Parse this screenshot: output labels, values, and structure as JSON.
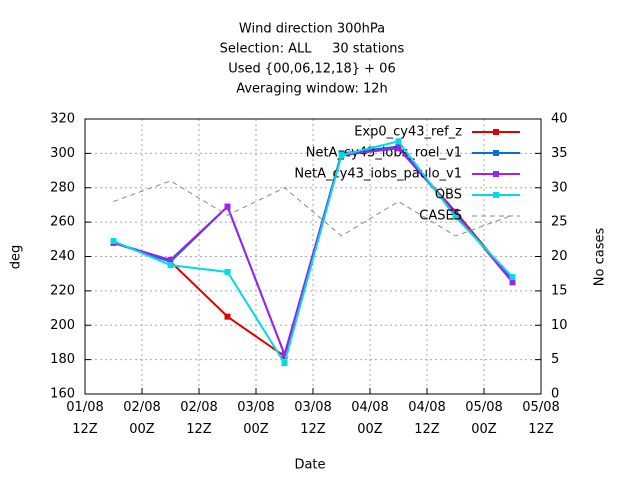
{
  "chart_data": {
    "type": "line",
    "title": [
      "Wind direction 300hPa",
      "Selection: ALL     30 stations",
      "Used {00,06,12,18} + 06",
      "Averaging window: 12h"
    ],
    "xlabel": "Date",
    "ylabel": "deg",
    "y2label": "No cases",
    "x": [
      6,
      18,
      30,
      42,
      54,
      66,
      78,
      90
    ],
    "xlim": [
      0,
      96
    ],
    "xticks": [
      {
        "value": 0,
        "label": "01/08\n12Z"
      },
      {
        "value": 12,
        "label": "02/08\n00Z"
      },
      {
        "value": 24,
        "label": "02/08\n12Z"
      },
      {
        "value": 36,
        "label": "03/08\n00Z"
      },
      {
        "value": 48,
        "label": "03/08\n12Z"
      },
      {
        "value": 60,
        "label": "04/08\n00Z"
      },
      {
        "value": 72,
        "label": "04/08\n12Z"
      },
      {
        "value": 84,
        "label": "05/08\n00Z"
      },
      {
        "value": 96,
        "label": "05/08\n12Z"
      }
    ],
    "ylim": [
      160,
      320
    ],
    "yticks": [
      160,
      180,
      200,
      220,
      240,
      260,
      280,
      300,
      320
    ],
    "y2lim": [
      0,
      40
    ],
    "y2ticks": [
      0,
      5,
      10,
      15,
      20,
      25,
      30,
      35,
      40
    ],
    "grid": true,
    "series": [
      {
        "name": "Exp0_cy43_ref_z",
        "color": "#e00000",
        "values": [
          248,
          237,
          205,
          182,
          300,
          303,
          266,
          226
        ]
      },
      {
        "name": "NetA_cy43_iobs_roel_v1",
        "color": "#0070e0",
        "values": [
          248,
          237,
          269,
          183,
          300,
          304,
          265,
          226
        ]
      },
      {
        "name": "NetA_cy43_iobs_paulo_v1",
        "color": "#a020f0",
        "values": [
          248,
          238,
          269,
          183,
          299,
          303,
          265,
          225
        ]
      },
      {
        "name": "OBS",
        "color": "#00dddd",
        "values": [
          249,
          235,
          231,
          178,
          299,
          307,
          263,
          228
        ]
      },
      {
        "name": "CASES",
        "color": "#888888",
        "axis": "y2",
        "dashed": true,
        "values": [
          28,
          31,
          26,
          30,
          23,
          28,
          23,
          26
        ]
      }
    ]
  }
}
